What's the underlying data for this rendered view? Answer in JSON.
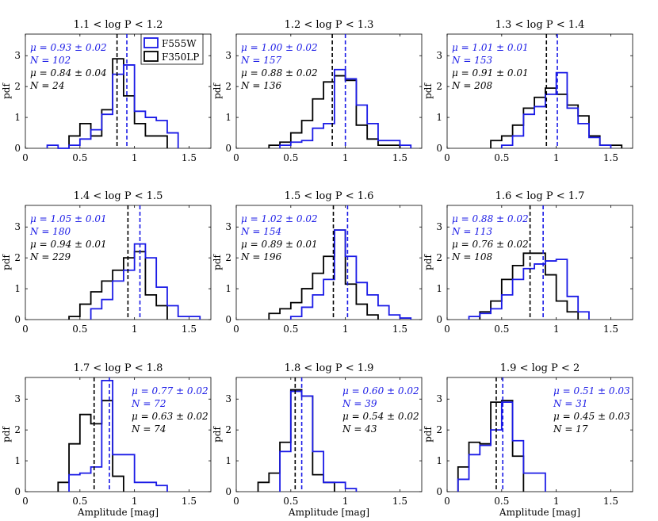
{
  "chart_data": {
    "type": "histogram-grid",
    "layout": "3x3",
    "xlabel": "Amplitude [mag]",
    "ylabel": "pdf",
    "xlim": [
      0,
      1.7
    ],
    "ylim": [
      0,
      3.7
    ],
    "xticks": [
      "0",
      "0.5",
      "1",
      "1.5"
    ],
    "yticks": [
      "0",
      "1",
      "2",
      "3"
    ],
    "legend": {
      "placement": "top-right of first panel",
      "entries": [
        {
          "name": "F555W",
          "color": "#1a1ae6"
        },
        {
          "name": "F350LP",
          "color": "#000000"
        }
      ]
    },
    "colors": {
      "F555W": "#1a1ae6",
      "F350LP": "#000000"
    },
    "panels": [
      {
        "title": "1.1 < log P < 1.2",
        "stats_placement": "left",
        "blue": {
          "mu": "μ = 0.93 ± 0.02",
          "n": "N = 102",
          "mean": 0.93,
          "edges": [
            0.2,
            0.3,
            0.4,
            0.5,
            0.6,
            0.7,
            0.8,
            0.9,
            1.0,
            1.1,
            1.2,
            1.3,
            1.4
          ],
          "values": [
            0.1,
            0.0,
            0.1,
            0.3,
            0.6,
            1.1,
            2.4,
            2.7,
            1.2,
            1.0,
            0.9,
            0.5
          ]
        },
        "black": {
          "mu": "μ = 0.84 ± 0.04",
          "n": "N = 24",
          "mean": 0.84,
          "edges": [
            0.4,
            0.5,
            0.6,
            0.7,
            0.8,
            0.9,
            1.0,
            1.1,
            1.2,
            1.3
          ],
          "values": [
            0.4,
            0.8,
            0.4,
            1.25,
            2.9,
            1.7,
            0.8,
            0.4,
            0.4
          ]
        }
      },
      {
        "title": "1.2 < log P < 1.3",
        "stats_placement": "left",
        "blue": {
          "mu": "μ = 1.00 ± 0.02",
          "n": "N = 157",
          "mean": 1.0,
          "edges": [
            0.4,
            0.5,
            0.6,
            0.7,
            0.8,
            0.9,
            1.0,
            1.1,
            1.2,
            1.3,
            1.4,
            1.5,
            1.6
          ],
          "values": [
            0.1,
            0.2,
            0.25,
            0.65,
            0.8,
            2.55,
            2.25,
            1.4,
            0.8,
            0.25,
            0.25,
            0.1
          ]
        },
        "black": {
          "mu": "μ = 0.88 ± 0.02",
          "n": "N = 136",
          "mean": 0.88,
          "edges": [
            0.3,
            0.4,
            0.5,
            0.6,
            0.7,
            0.8,
            0.9,
            1.0,
            1.1,
            1.2,
            1.3,
            1.4,
            1.5
          ],
          "values": [
            0.1,
            0.2,
            0.5,
            0.9,
            1.6,
            2.15,
            2.35,
            2.2,
            0.75,
            0.3,
            0.1,
            0.1
          ]
        }
      },
      {
        "title": "1.3 < log P < 1.4",
        "stats_placement": "left",
        "blue": {
          "mu": "μ = 1.01 ± 0.01",
          "n": "N = 153",
          "mean": 1.01,
          "edges": [
            0.5,
            0.6,
            0.7,
            0.8,
            0.9,
            1.0,
            1.1,
            1.2,
            1.3,
            1.4,
            1.5
          ],
          "values": [
            0.1,
            0.4,
            1.1,
            1.35,
            1.75,
            2.45,
            1.3,
            0.8,
            0.35,
            0.1
          ]
        },
        "black": {
          "mu": "μ = 0.91 ± 0.01",
          "n": "N = 208",
          "mean": 0.91,
          "edges": [
            0.4,
            0.5,
            0.6,
            0.7,
            0.8,
            0.9,
            1.0,
            1.1,
            1.2,
            1.3,
            1.4,
            1.5,
            1.6
          ],
          "values": [
            0.25,
            0.4,
            0.75,
            1.3,
            1.65,
            1.95,
            1.75,
            1.4,
            1.05,
            0.4,
            0.1,
            0.1
          ]
        }
      },
      {
        "title": "1.4 < log P < 1.5",
        "stats_placement": "left",
        "blue": {
          "mu": "μ = 1.05 ± 0.01",
          "n": "N = 180",
          "mean": 1.05,
          "edges": [
            0.6,
            0.7,
            0.8,
            0.9,
            1.0,
            1.1,
            1.2,
            1.3,
            1.4,
            1.5,
            1.6
          ],
          "values": [
            0.35,
            0.65,
            1.25,
            1.6,
            2.45,
            2.0,
            1.05,
            0.45,
            0.1,
            0.1
          ]
        },
        "black": {
          "mu": "μ = 0.94 ± 0.01",
          "n": "N = 229",
          "mean": 0.94,
          "edges": [
            0.4,
            0.5,
            0.6,
            0.7,
            0.8,
            0.9,
            1.0,
            1.1,
            1.2,
            1.3
          ],
          "values": [
            0.1,
            0.5,
            0.9,
            1.25,
            1.6,
            2.0,
            2.2,
            0.8,
            0.45
          ]
        }
      },
      {
        "title": "1.5 < log P < 1.6",
        "stats_placement": "left",
        "blue": {
          "mu": "μ = 1.02 ± 0.02",
          "n": "N = 154",
          "mean": 1.02,
          "edges": [
            0.5,
            0.6,
            0.7,
            0.8,
            0.9,
            1.0,
            1.1,
            1.2,
            1.3,
            1.4,
            1.5,
            1.6
          ],
          "values": [
            0.1,
            0.4,
            0.8,
            1.3,
            2.9,
            2.05,
            1.2,
            0.8,
            0.45,
            0.15,
            0.05
          ]
        },
        "black": {
          "mu": "μ = 0.89 ± 0.01",
          "n": "N = 196",
          "mean": 0.89,
          "edges": [
            0.3,
            0.4,
            0.5,
            0.6,
            0.7,
            0.8,
            0.9,
            1.0,
            1.1,
            1.2,
            1.3
          ],
          "values": [
            0.2,
            0.35,
            0.55,
            1.0,
            1.5,
            2.05,
            2.9,
            1.15,
            0.5,
            0.15
          ]
        }
      },
      {
        "title": "1.6 < log P < 1.7",
        "stats_placement": "left",
        "blue": {
          "mu": "μ = 0.88 ± 0.02",
          "n": "N = 113",
          "mean": 0.88,
          "edges": [
            0.2,
            0.3,
            0.4,
            0.5,
            0.6,
            0.7,
            0.8,
            0.9,
            1.0,
            1.1,
            1.2,
            1.3
          ],
          "values": [
            0.1,
            0.2,
            0.35,
            0.8,
            1.3,
            1.65,
            1.8,
            1.9,
            1.95,
            0.75,
            0.25
          ]
        },
        "black": {
          "mu": "μ = 0.76 ± 0.02",
          "n": "N = 108",
          "mean": 0.76,
          "edges": [
            0.3,
            0.4,
            0.5,
            0.6,
            0.7,
            0.8,
            0.9,
            1.0,
            1.1,
            1.2
          ],
          "values": [
            0.25,
            0.6,
            1.3,
            1.75,
            2.15,
            2.15,
            1.45,
            0.6,
            0.25
          ]
        }
      },
      {
        "title": "1.7 < log P < 1.8",
        "stats_placement": "right",
        "blue": {
          "mu": "μ = 0.77 ± 0.02",
          "n": "N = 72",
          "mean": 0.77,
          "edges": [
            0.4,
            0.5,
            0.6,
            0.7,
            0.8,
            0.9,
            1.0,
            1.1,
            1.2,
            1.3
          ],
          "values": [
            0.55,
            0.6,
            0.8,
            3.6,
            1.2,
            1.2,
            0.3,
            0.3,
            0.2
          ]
        },
        "black": {
          "mu": "μ = 0.63 ± 0.02",
          "n": "N = 74",
          "mean": 0.63,
          "edges": [
            0.3,
            0.4,
            0.5,
            0.6,
            0.7,
            0.8,
            0.9
          ],
          "values": [
            0.3,
            1.55,
            2.5,
            2.2,
            2.95,
            0.5
          ]
        }
      },
      {
        "title": "1.8 < log P < 1.9",
        "stats_placement": "right",
        "blue": {
          "mu": "μ = 0.60 ± 0.02",
          "n": "N = 39",
          "mean": 0.6,
          "edges": [
            0.4,
            0.5,
            0.6,
            0.7,
            0.8,
            0.9,
            1.0,
            1.1
          ],
          "values": [
            1.3,
            3.25,
            3.1,
            1.3,
            0.3,
            0.3,
            0.1
          ]
        },
        "black": {
          "mu": "μ = 0.54 ± 0.02",
          "n": "N = 43",
          "mean": 0.54,
          "edges": [
            0.2,
            0.3,
            0.4,
            0.5,
            0.6,
            0.7,
            0.8,
            0.9
          ],
          "values": [
            0.3,
            0.6,
            1.6,
            3.3,
            3.1,
            0.55,
            0.3
          ]
        }
      },
      {
        "title": "1.9 < log P < 2",
        "stats_placement": "right",
        "blue": {
          "mu": "μ = 0.51 ± 0.03",
          "n": "N = 31",
          "mean": 0.51,
          "edges": [
            0.1,
            0.2,
            0.3,
            0.4,
            0.5,
            0.6,
            0.7,
            0.9
          ],
          "values": [
            0.4,
            1.2,
            1.5,
            2.0,
            2.9,
            1.65,
            0.6
          ]
        },
        "black": {
          "mu": "μ = 0.45 ± 0.03",
          "n": "N = 17",
          "mean": 0.45,
          "edges": [
            0.1,
            0.2,
            0.3,
            0.4,
            0.5,
            0.6,
            0.7
          ],
          "values": [
            0.8,
            1.6,
            1.55,
            2.9,
            2.95,
            1.15
          ]
        }
      }
    ]
  }
}
